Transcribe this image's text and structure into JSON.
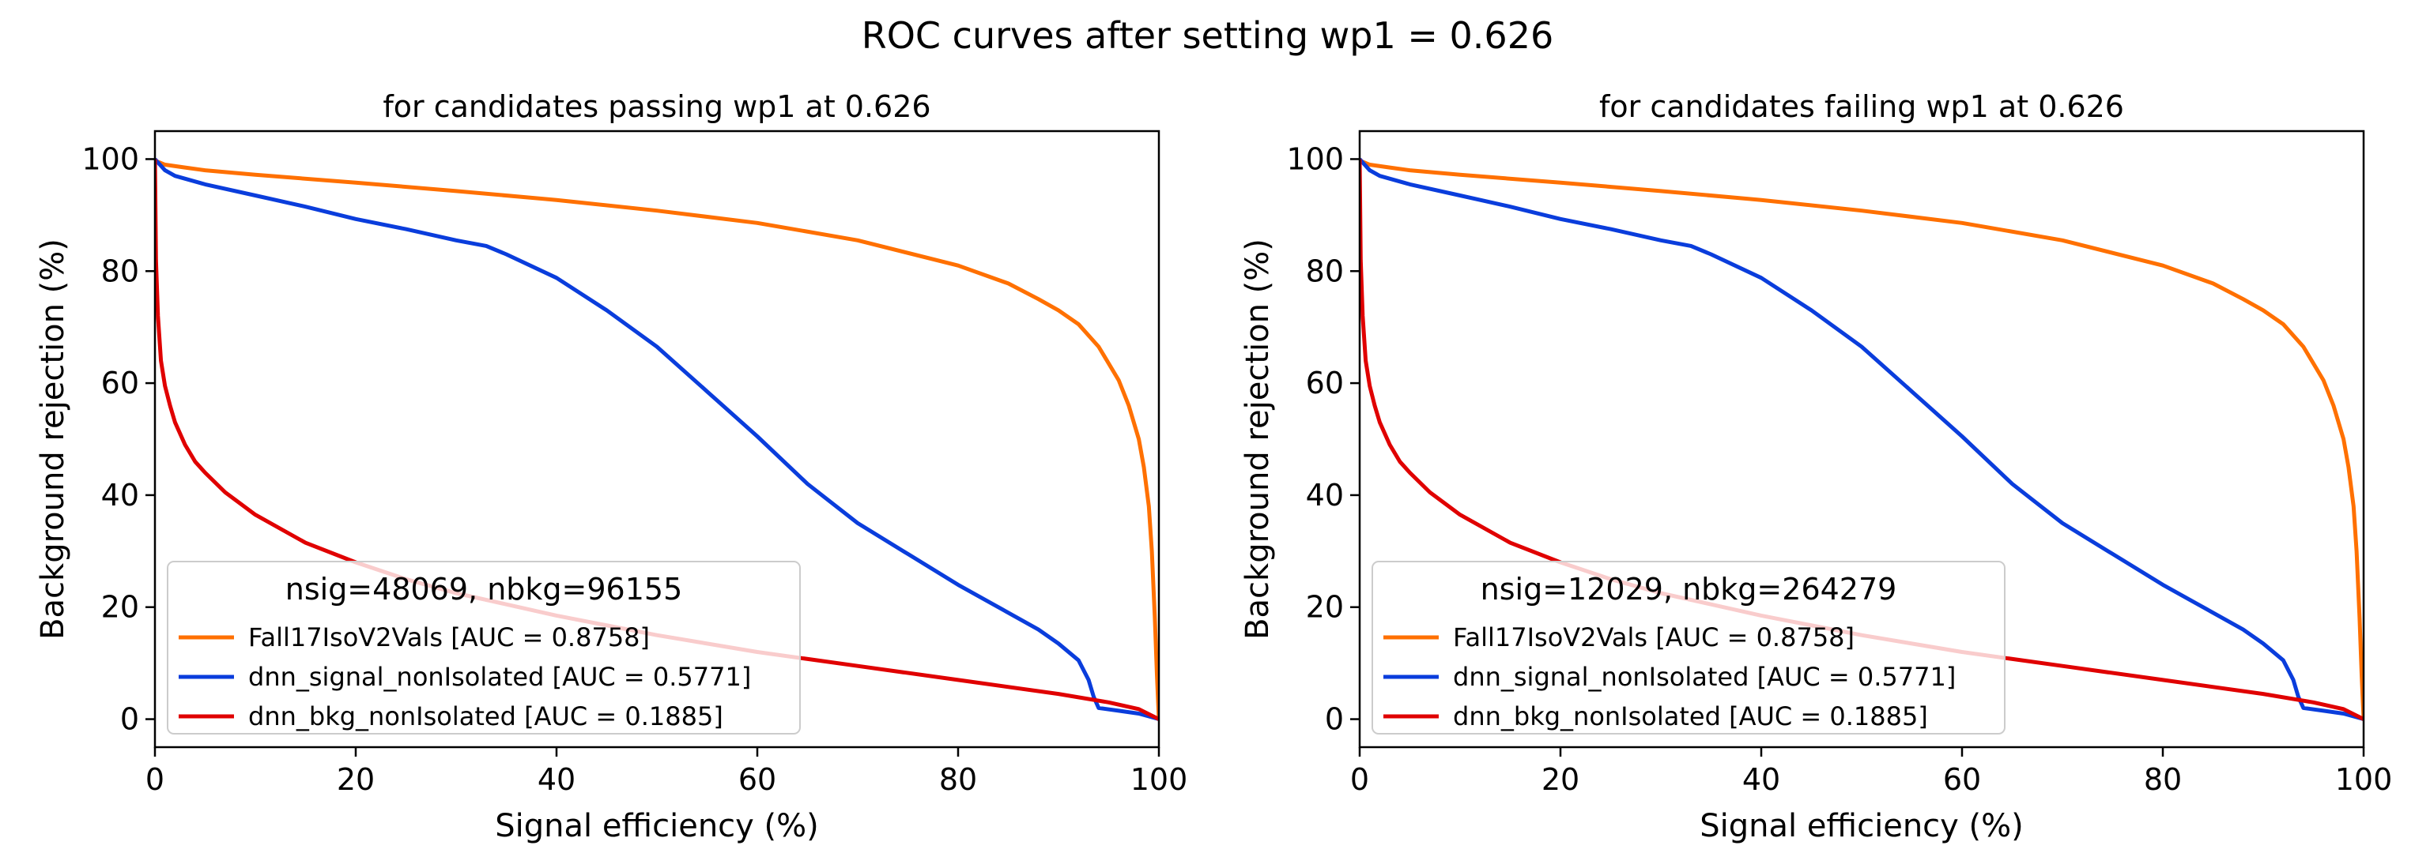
{
  "figure": {
    "title": "ROC curves after setting wp1 = 0.626"
  },
  "colors": {
    "Fall17IsoV2Vals": "#ff7000",
    "dnn_signal_nonIsolated": "#0a3ddc",
    "dnn_bkg_nonIsolated": "#e00000"
  },
  "chart_data": [
    {
      "type": "line",
      "title": "for candidates passing wp1 at 0.626",
      "xlabel": "Signal efficiency (%)",
      "ylabel": "Background rejection (%)",
      "xlim": [
        0,
        100
      ],
      "ylim": [
        -5,
        105
      ],
      "xticks": [
        0,
        20,
        40,
        60,
        80,
        100
      ],
      "yticks": [
        0,
        20,
        40,
        60,
        80,
        100
      ],
      "legend_title": "nsig=48069, nbkg=96155",
      "legend_location": "lower left",
      "series": [
        {
          "name": "Fall17IsoV2Vals [AUC = 0.8758]",
          "color": "#ff7000",
          "x": [
            0,
            0.2,
            1,
            3,
            5,
            10,
            20,
            30,
            40,
            50,
            60,
            70,
            80,
            85,
            88,
            90,
            92,
            94,
            96,
            97,
            98,
            98.5,
            99,
            99.3,
            99.6,
            99.8,
            100
          ],
          "y": [
            100,
            99.6,
            99,
            98.5,
            98,
            97.2,
            95.8,
            94.3,
            92.7,
            90.8,
            88.6,
            85.5,
            81,
            77.8,
            75,
            73,
            70.5,
            66.5,
            60.5,
            56,
            50,
            45,
            38,
            30,
            18,
            8,
            0
          ]
        },
        {
          "name": "dnn_signal_nonIsolated [AUC = 0.5771]",
          "color": "#0a3ddc",
          "x": [
            0,
            0.5,
            1,
            2,
            5,
            10,
            15,
            20,
            25,
            30,
            33,
            35,
            40,
            45,
            50,
            55,
            60,
            65,
            70,
            75,
            80,
            85,
            88,
            90,
            92,
            93,
            93.5,
            94,
            96,
            98,
            100
          ],
          "y": [
            100,
            99,
            98,
            97,
            95.5,
            93.5,
            91.5,
            89.3,
            87.5,
            85.5,
            84.5,
            83,
            78.8,
            73,
            66.5,
            58.5,
            50.5,
            42,
            35,
            29.5,
            24,
            19,
            16,
            13.5,
            10.5,
            7,
            4,
            2,
            1.5,
            1,
            0
          ]
        },
        {
          "name": "dnn_bkg_nonIsolated [AUC = 0.1885]",
          "color": "#e00000",
          "x": [
            0,
            0.1,
            0.3,
            0.6,
            1,
            1.5,
            2,
            3,
            4,
            5,
            7,
            10,
            15,
            20,
            25,
            30,
            40,
            50,
            60,
            70,
            80,
            90,
            95,
            98,
            100
          ],
          "y": [
            100,
            82,
            72,
            64,
            59.5,
            56,
            53,
            49,
            46,
            44,
            40.5,
            36.5,
            31.5,
            28,
            25,
            22.5,
            18.5,
            15,
            12,
            9.5,
            7,
            4.5,
            3,
            1.8,
            0
          ]
        }
      ]
    },
    {
      "type": "line",
      "title": "for candidates failing wp1 at 0.626",
      "xlabel": "Signal efficiency (%)",
      "ylabel": "Background rejection (%)",
      "xlim": [
        0,
        100
      ],
      "ylim": [
        -5,
        105
      ],
      "xticks": [
        0,
        20,
        40,
        60,
        80,
        100
      ],
      "yticks": [
        0,
        20,
        40,
        60,
        80,
        100
      ],
      "legend_title": "nsig=12029, nbkg=264279",
      "legend_location": "lower left",
      "series": [
        {
          "name": "Fall17IsoV2Vals [AUC = 0.8758]",
          "color": "#ff7000",
          "x": [
            0,
            0.2,
            1,
            3,
            5,
            10,
            20,
            30,
            40,
            50,
            60,
            70,
            80,
            85,
            88,
            90,
            92,
            94,
            96,
            97,
            98,
            98.5,
            99,
            99.3,
            99.6,
            99.8,
            100
          ],
          "y": [
            100,
            99.6,
            99,
            98.5,
            98,
            97.2,
            95.8,
            94.3,
            92.7,
            90.8,
            88.6,
            85.5,
            81,
            77.8,
            75,
            73,
            70.5,
            66.5,
            60.5,
            56,
            50,
            45,
            38,
            30,
            18,
            8,
            0
          ]
        },
        {
          "name": "dnn_signal_nonIsolated [AUC = 0.5771]",
          "color": "#0a3ddc",
          "x": [
            0,
            0.5,
            1,
            2,
            5,
            10,
            15,
            20,
            25,
            30,
            33,
            35,
            40,
            45,
            50,
            55,
            60,
            65,
            70,
            75,
            80,
            85,
            88,
            90,
            92,
            93,
            93.5,
            94,
            96,
            98,
            100
          ],
          "y": [
            100,
            99,
            98,
            97,
            95.5,
            93.5,
            91.5,
            89.3,
            87.5,
            85.5,
            84.5,
            83,
            78.8,
            73,
            66.5,
            58.5,
            50.5,
            42,
            35,
            29.5,
            24,
            19,
            16,
            13.5,
            10.5,
            7,
            4,
            2,
            1.5,
            1,
            0
          ]
        },
        {
          "name": "dnn_bkg_nonIsolated [AUC = 0.1885]",
          "color": "#e00000",
          "x": [
            0,
            0.1,
            0.3,
            0.6,
            1,
            1.5,
            2,
            3,
            4,
            5,
            7,
            10,
            15,
            20,
            25,
            30,
            40,
            50,
            60,
            70,
            80,
            90,
            95,
            98,
            100
          ],
          "y": [
            100,
            82,
            72,
            64,
            59.5,
            56,
            53,
            49,
            46,
            44,
            40.5,
            36.5,
            31.5,
            28,
            25,
            22.5,
            18.5,
            15,
            12,
            9.5,
            7,
            4.5,
            3,
            1.8,
            0
          ]
        }
      ]
    }
  ]
}
